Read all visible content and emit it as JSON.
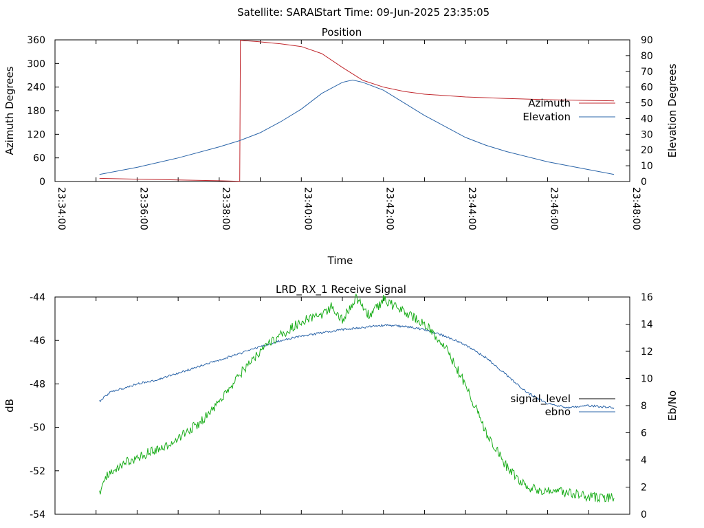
{
  "header": {
    "satellite": "Satellite: SARAL",
    "start_time": "Start Time: 09-Jun-2025 23:35:05"
  },
  "chart_data": [
    {
      "type": "line",
      "title": "Position",
      "xlabel": "Time",
      "ylabel_left": "Azimuth Degrees",
      "ylabel_right": "Elevation Degrees",
      "x_ticks": [
        "23:34:00",
        "23:36:00",
        "23:38:00",
        "23:40:00",
        "23:42:00",
        "23:44:00",
        "23:46:00",
        "23:48:00"
      ],
      "x_range": [
        "23:34:00",
        "23:48:00"
      ],
      "y_left_ticks": [
        "0",
        "60",
        "120",
        "180",
        "240",
        "300",
        "360"
      ],
      "y_left_range": [
        0,
        360
      ],
      "y_right_ticks": [
        "0",
        "10",
        "20",
        "30",
        "40",
        "50",
        "60",
        "70",
        "80",
        "90"
      ],
      "y_right_range": [
        0,
        90
      ],
      "legend_position": "right",
      "series": [
        {
          "name": "Azimuth",
          "axis": "left",
          "color": "#c0272d",
          "points": [
            [
              "23:35:05",
              8
            ],
            [
              "23:36:00",
              6
            ],
            [
              "23:37:00",
              4
            ],
            [
              "23:38:00",
              2
            ],
            [
              "23:38:30",
              0.5
            ],
            [
              "23:38:31",
              359
            ],
            [
              "23:39:00",
              355
            ],
            [
              "23:39:30",
              350
            ],
            [
              "23:40:00",
              343
            ],
            [
              "23:40:30",
              325
            ],
            [
              "23:41:00",
              290
            ],
            [
              "23:41:30",
              257
            ],
            [
              "23:42:00",
              240
            ],
            [
              "23:42:30",
              229
            ],
            [
              "23:43:00",
              222
            ],
            [
              "23:44:00",
              215
            ],
            [
              "23:45:00",
              211
            ],
            [
              "23:46:00",
              208
            ],
            [
              "23:47:00",
              206
            ],
            [
              "23:47:37",
              205
            ]
          ]
        },
        {
          "name": "Elevation",
          "axis": "right",
          "color": "#2a64a8",
          "points": [
            [
              "23:35:05",
              4.5
            ],
            [
              "23:36:00",
              9
            ],
            [
              "23:37:00",
              15
            ],
            [
              "23:38:00",
              22
            ],
            [
              "23:38:30",
              26
            ],
            [
              "23:39:00",
              31
            ],
            [
              "23:39:30",
              38
            ],
            [
              "23:40:00",
              46
            ],
            [
              "23:40:30",
              56
            ],
            [
              "23:41:00",
              63
            ],
            [
              "23:41:15",
              64.5
            ],
            [
              "23:41:30",
              63
            ],
            [
              "23:42:00",
              58
            ],
            [
              "23:42:30",
              50
            ],
            [
              "23:43:00",
              42
            ],
            [
              "23:43:30",
              35
            ],
            [
              "23:44:00",
              28
            ],
            [
              "23:44:30",
              23
            ],
            [
              "23:45:00",
              19
            ],
            [
              "23:46:00",
              12.5
            ],
            [
              "23:47:00",
              7.5
            ],
            [
              "23:47:37",
              4.5
            ]
          ]
        }
      ]
    },
    {
      "type": "line",
      "title": "LRD_RX_1 Receive Signal",
      "xlabel": "",
      "ylabel_left": "dB",
      "ylabel_right": "Eb/No",
      "x_range": [
        "23:34:00",
        "23:48:00"
      ],
      "y_left_ticks": [
        "-44",
        "-46",
        "-48",
        "-50",
        "-52",
        "-54"
      ],
      "y_left_range": [
        -54,
        -44
      ],
      "y_right_ticks": [
        "0",
        "2",
        "4",
        "6",
        "8",
        "10",
        "12",
        "14",
        "16"
      ],
      "y_right_range": [
        0,
        16
      ],
      "legend_position": "right",
      "series": [
        {
          "name": "signal_level",
          "axis": "left",
          "color": "#2a64a8",
          "points": [
            [
              "23:35:05",
              -48.8
            ],
            [
              "23:35:20",
              -48.4
            ],
            [
              "23:35:40",
              -48.2
            ],
            [
              "23:36:00",
              -48.0
            ],
            [
              "23:36:30",
              -47.8
            ],
            [
              "23:37:00",
              -47.5
            ],
            [
              "23:37:30",
              -47.2
            ],
            [
              "23:38:00",
              -46.9
            ],
            [
              "23:38:30",
              -46.6
            ],
            [
              "23:39:00",
              -46.3
            ],
            [
              "23:39:30",
              -46.0
            ],
            [
              "23:40:00",
              -45.8
            ],
            [
              "23:40:30",
              -45.65
            ],
            [
              "23:41:00",
              -45.5
            ],
            [
              "23:41:30",
              -45.4
            ],
            [
              "23:42:00",
              -45.3
            ],
            [
              "23:42:30",
              -45.35
            ],
            [
              "23:43:00",
              -45.5
            ],
            [
              "23:43:30",
              -45.8
            ],
            [
              "23:44:00",
              -46.2
            ],
            [
              "23:44:30",
              -46.8
            ],
            [
              "23:45:00",
              -47.6
            ],
            [
              "23:45:30",
              -48.4
            ],
            [
              "23:46:00",
              -48.9
            ],
            [
              "23:46:30",
              -49.1
            ],
            [
              "23:47:00",
              -49.0
            ],
            [
              "23:47:37",
              -49.1
            ]
          ]
        },
        {
          "name": "ebno",
          "axis": "right",
          "color": "#1aad1a",
          "points": [
            [
              "23:35:05",
              1.5
            ],
            [
              "23:35:20",
              3.2
            ],
            [
              "23:35:40",
              3.7
            ],
            [
              "23:36:00",
              4.2
            ],
            [
              "23:36:30",
              4.8
            ],
            [
              "23:37:00",
              5.6
            ],
            [
              "23:37:30",
              6.7
            ],
            [
              "23:38:00",
              8.2
            ],
            [
              "23:38:30",
              10.3
            ],
            [
              "23:39:00",
              12.0
            ],
            [
              "23:39:30",
              13.2
            ],
            [
              "23:40:00",
              14.2
            ],
            [
              "23:40:30",
              14.7
            ],
            [
              "23:40:45",
              15.3
            ],
            [
              "23:41:00",
              14.3
            ],
            [
              "23:41:20",
              15.9
            ],
            [
              "23:41:40",
              14.6
            ],
            [
              "23:42:00",
              15.8
            ],
            [
              "23:42:30",
              14.9
            ],
            [
              "23:43:00",
              14.0
            ],
            [
              "23:43:30",
              12.4
            ],
            [
              "23:44:00",
              9.5
            ],
            [
              "23:44:30",
              6.0
            ],
            [
              "23:45:00",
              3.5
            ],
            [
              "23:45:30",
              2.0
            ],
            [
              "23:46:00",
              1.7
            ],
            [
              "23:46:30",
              1.6
            ],
            [
              "23:47:00",
              1.3
            ],
            [
              "23:47:37",
              1.2
            ]
          ]
        }
      ]
    }
  ]
}
